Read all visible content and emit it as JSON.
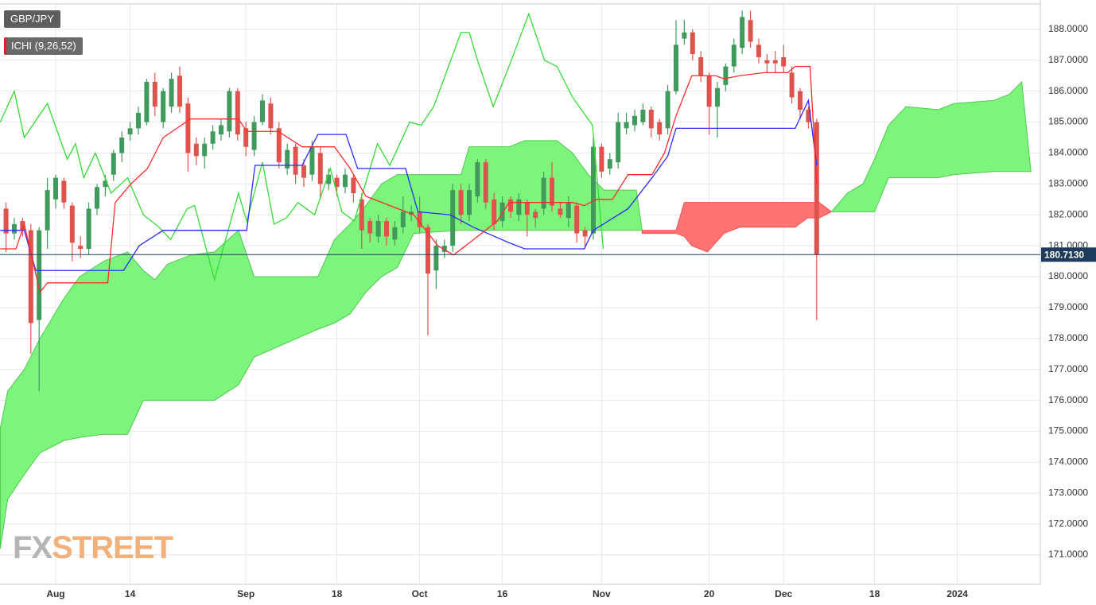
{
  "chart_data": {
    "type": "candlestick",
    "symbol": "GBP/JPY",
    "indicator": "ICHI (9,26,52)",
    "watermark": {
      "prefix": "FX",
      "suffix": "STREET"
    },
    "xlim": [
      -0.73,
      125.04
    ],
    "ylim": [
      170.05,
      188.82
    ],
    "grid": true,
    "xticks": [
      {
        "value": 6,
        "label": "Aug"
      },
      {
        "value": 15,
        "label": "14"
      },
      {
        "value": 29,
        "label": "Sep"
      },
      {
        "value": 40,
        "label": "18"
      },
      {
        "value": 50,
        "label": "Oct"
      },
      {
        "value": 60,
        "label": "16"
      },
      {
        "value": 72,
        "label": "Nov"
      },
      {
        "value": 85,
        "label": "20"
      },
      {
        "value": 94,
        "label": "Dec"
      },
      {
        "value": 105,
        "label": "18"
      },
      {
        "value": 115,
        "label": "2024"
      }
    ],
    "yticks": [
      {
        "value": 171,
        "label": "171.0000"
      },
      {
        "value": 172,
        "label": "172.0000"
      },
      {
        "value": 173,
        "label": "173.0000"
      },
      {
        "value": 174,
        "label": "174.0000"
      },
      {
        "value": 175,
        "label": "175.0000"
      },
      {
        "value": 176,
        "label": "176.0000"
      },
      {
        "value": 177,
        "label": "177.0000"
      },
      {
        "value": 178,
        "label": "178.0000"
      },
      {
        "value": 179,
        "label": "179.0000"
      },
      {
        "value": 180,
        "label": "180.0000"
      },
      {
        "value": 181,
        "label": "181.0000"
      },
      {
        "value": 182,
        "label": "182.0000"
      },
      {
        "value": 183,
        "label": "183.0000"
      },
      {
        "value": 184,
        "label": "184.0000"
      },
      {
        "value": 185,
        "label": "185.0000"
      },
      {
        "value": 186,
        "label": "186.0000"
      },
      {
        "value": 187,
        "label": "187.0000"
      },
      {
        "value": 188,
        "label": "188.0000"
      }
    ],
    "last_price": {
      "value": 180.713,
      "label": "180.7130",
      "color": "#1f3b5c"
    },
    "up_color": "#3f9a5c",
    "down_color": "#e0534d",
    "candles": {
      "x": [
        0,
        1,
        2,
        3,
        4,
        5,
        6,
        7,
        8,
        9,
        10,
        11,
        12,
        13,
        14,
        15,
        16,
        17,
        18,
        19,
        20,
        21,
        22,
        23,
        24,
        25,
        26,
        27,
        28,
        29,
        30,
        31,
        32,
        33,
        34,
        35,
        36,
        37,
        38,
        39,
        40,
        41,
        42,
        43,
        44,
        45,
        46,
        47,
        48,
        49,
        50,
        51,
        52,
        53,
        54,
        55,
        56,
        57,
        58,
        59,
        60,
        61,
        62,
        63,
        64,
        65,
        66,
        67,
        68,
        69,
        70,
        71,
        72,
        73,
        74,
        75,
        76,
        77,
        78,
        79,
        80,
        81,
        82,
        83,
        84,
        85,
        86,
        87,
        88,
        89,
        90,
        91,
        92,
        93,
        94,
        95,
        96,
        97,
        98
      ],
      "open": [
        182.2,
        181.4,
        181.8,
        181.5,
        178.6,
        181.5,
        182.5,
        183.1,
        182.3,
        181.0,
        180.9,
        182.2,
        182.9,
        183.3,
        184.0,
        184.6,
        184.8,
        185.0,
        186.3,
        185.0,
        185.5,
        186.5,
        185.6,
        184.3,
        183.9,
        184.3,
        184.6,
        184.7,
        186.0,
        184.8,
        184.1,
        185.0,
        185.6,
        184.8,
        183.5,
        184.2,
        183.6,
        183.3,
        184.0,
        183.0,
        183.2,
        182.9,
        183.2,
        182.5,
        181.8,
        181.3,
        181.8,
        181.2,
        181.6,
        182.0,
        182.1,
        181.6,
        180.2,
        180.8,
        181.0,
        182.8,
        182.0,
        182.6,
        183.7,
        182.5,
        181.8,
        182.5,
        182.0,
        182.4,
        182.1,
        182.2,
        183.2,
        182.2,
        181.9,
        182.3,
        181.5,
        181.4,
        184.2,
        183.5,
        183.7,
        184.8,
        184.9,
        185.0,
        185.4,
        185.0,
        184.8,
        186.0,
        187.7,
        187.9,
        187.1,
        186.5,
        185.5,
        186.2,
        186.8,
        187.4,
        188.3,
        187.5,
        187.0,
        187.0,
        187.1,
        186.6,
        186.0,
        185.4,
        185.0
      ],
      "high": [
        182.4,
        181.9,
        181.9,
        181.7,
        181.6,
        183.2,
        183.3,
        183.2,
        182.4,
        181.3,
        182.4,
        183.0,
        183.3,
        184.1,
        184.7,
        185.0,
        185.5,
        186.4,
        186.6,
        186.1,
        186.6,
        186.8,
        185.8,
        184.5,
        184.5,
        184.9,
        185.1,
        186.1,
        186.1,
        185.0,
        185.2,
        185.9,
        185.8,
        185.0,
        184.3,
        184.3,
        183.8,
        184.4,
        184.2,
        183.5,
        183.3,
        183.5,
        183.3,
        182.7,
        181.9,
        182.0,
        181.9,
        181.8,
        182.6,
        182.3,
        182.6,
        181.7,
        181.2,
        181.2,
        183.0,
        183.0,
        183.0,
        183.8,
        183.8,
        182.7,
        182.6,
        182.6,
        182.7,
        182.5,
        182.2,
        183.4,
        183.7,
        182.4,
        182.6,
        182.4,
        181.6,
        184.5,
        184.3,
        184.0,
        185.3,
        185.3,
        185.4,
        185.6,
        185.5,
        185.1,
        186.2,
        188.3,
        188.3,
        188.0,
        187.3,
        186.6,
        186.3,
        186.9,
        187.7,
        188.6,
        188.6,
        187.7,
        187.2,
        187.3,
        187.5,
        186.8,
        186.1,
        185.5,
        185.1
      ],
      "low": [
        180.8,
        181.2,
        181.3,
        177.5,
        176.3,
        180.9,
        182.2,
        182.2,
        180.5,
        180.6,
        180.7,
        182.0,
        182.6,
        183.1,
        183.7,
        184.4,
        184.6,
        184.9,
        185.2,
        184.8,
        185.3,
        185.3,
        183.4,
        183.6,
        183.5,
        184.1,
        184.4,
        184.5,
        184.4,
        183.9,
        183.9,
        184.9,
        184.6,
        183.5,
        183.3,
        183.0,
        182.9,
        183.1,
        182.5,
        182.8,
        182.6,
        182.7,
        182.4,
        180.9,
        181.1,
        181.1,
        181.0,
        181.0,
        181.4,
        181.8,
        181.4,
        178.1,
        179.6,
        180.6,
        180.8,
        181.7,
        181.8,
        182.4,
        182.2,
        181.5,
        181.6,
        181.9,
        181.8,
        181.3,
        181.6,
        182.0,
        182.1,
        181.9,
        181.6,
        181.1,
        180.9,
        181.2,
        183.2,
        183.3,
        183.5,
        184.6,
        184.7,
        184.9,
        184.5,
        184.4,
        184.6,
        185.9,
        187.5,
        187.0,
        186.3,
        184.6,
        184.5,
        186.0,
        186.6,
        187.2,
        187.4,
        186.9,
        186.6,
        186.6,
        186.6,
        185.6,
        185.1,
        184.8,
        178.6
      ],
      "close": [
        181.4,
        181.7,
        181.5,
        178.5,
        181.5,
        182.8,
        183.2,
        182.4,
        181.1,
        180.9,
        182.2,
        182.9,
        183.1,
        184.0,
        184.5,
        184.8,
        185.3,
        186.3,
        185.5,
        186.0,
        186.4,
        185.5,
        184.0,
        183.9,
        184.3,
        184.7,
        184.9,
        186.0,
        184.6,
        184.2,
        185.0,
        185.7,
        184.8,
        183.7,
        184.1,
        183.3,
        183.2,
        184.2,
        183.0,
        183.3,
        182.9,
        183.3,
        182.7,
        181.5,
        181.4,
        181.8,
        181.3,
        181.6,
        182.1,
        182.1,
        181.6,
        180.1,
        181.0,
        181.0,
        182.8,
        182.0,
        182.8,
        183.7,
        182.4,
        181.7,
        182.4,
        182.1,
        182.5,
        182.0,
        181.9,
        183.2,
        182.3,
        182.0,
        182.4,
        181.4,
        181.3,
        184.2,
        183.4,
        183.8,
        185.0,
        185.0,
        185.2,
        185.4,
        184.8,
        184.6,
        186.0,
        187.5,
        187.9,
        187.2,
        186.5,
        185.5,
        186.1,
        186.8,
        187.5,
        188.4,
        187.6,
        187.1,
        186.9,
        186.9,
        186.8,
        185.8,
        185.4,
        185.0,
        180.713
      ]
    },
    "clouds": [
      {
        "color": "#7df57d",
        "edge": "#4fc94f",
        "x": [
          -0.7,
          0.2,
          2.2,
          4.1,
          7.0,
          8.9,
          11.8,
          14.7,
          16.6,
          18.0,
          19.5,
          22.3,
          25.2,
          28.1,
          30.0,
          37.7,
          39.7,
          41.6,
          43.5,
          45.4,
          47.3,
          49.3,
          55.0,
          56.0,
          60.8,
          62.7,
          66.6,
          68.5,
          70.4,
          72.3,
          76.2,
          76.9
        ],
        "upper": [
          175.1,
          176.3,
          177.0,
          178.0,
          179.3,
          180.0,
          180.5,
          180.8,
          180.2,
          179.9,
          180.4,
          180.7,
          180.8,
          181.5,
          180.0,
          180.0,
          181.2,
          181.7,
          182.3,
          183.0,
          183.3,
          183.3,
          183.3,
          184.2,
          184.2,
          184.4,
          184.4,
          184.0,
          183.3,
          182.8,
          182.8,
          181.5
        ],
        "lower": [
          171.2,
          172.8,
          173.6,
          174.3,
          174.7,
          174.8,
          174.9,
          174.9,
          176.0,
          176.0,
          176.0,
          176.0,
          176.0,
          176.5,
          177.4,
          178.3,
          178.5,
          178.8,
          179.5,
          180.0,
          180.3,
          181.4,
          181.5,
          181.5,
          181.5,
          181.5,
          181.5,
          181.5,
          181.5,
          181.5,
          181.5,
          181.5
        ]
      },
      {
        "color": "#ff7373",
        "edge": "#f25050",
        "x": [
          76.9,
          81.0,
          82.0,
          82.9,
          84.8,
          86.8,
          88.7,
          91.6,
          95.4,
          96.9,
          98.3,
          99.8
        ],
        "upper": [
          181.5,
          181.5,
          182.4,
          182.4,
          182.4,
          182.4,
          182.4,
          182.4,
          182.4,
          182.4,
          182.4,
          182.1
        ],
        "lower": [
          181.4,
          181.4,
          181.3,
          181.0,
          180.8,
          181.4,
          181.6,
          181.6,
          181.6,
          181.9,
          181.9,
          182.1
        ]
      },
      {
        "color": "#7df57d",
        "edge": "#4fc94f",
        "x": [
          99.8,
          101.7,
          103.6,
          105.0,
          106.7,
          108.8,
          112.7,
          114.6,
          119.4,
          121.3,
          122.8,
          123.9
        ],
        "upper": [
          182.1,
          182.7,
          183.0,
          183.8,
          184.9,
          185.5,
          185.4,
          185.6,
          185.7,
          185.9,
          186.3,
          183.4
        ],
        "lower": [
          182.1,
          182.1,
          182.1,
          182.1,
          183.2,
          183.2,
          183.2,
          183.3,
          183.4,
          183.4,
          183.4,
          183.4
        ]
      }
    ],
    "lines": [
      {
        "color": "#33dd33",
        "x": [
          -0.7,
          1.0,
          2.2,
          5.0,
          7.4,
          8.4,
          9.4,
          10.8,
          12.7,
          14.7,
          16.6,
          18.5,
          19.9,
          21.9,
          22.8,
          25.2,
          28.1,
          29.1,
          31.0,
          32.4,
          33.9,
          35.3,
          37.3,
          39.2,
          40.6,
          42.1,
          44.9,
          46.4,
          48.8,
          50.2,
          51.7,
          55.0,
          56.0,
          57.0,
          58.9,
          60.8,
          63.2,
          65.1,
          66.6,
          68.5,
          70.9,
          72.2
        ],
        "values": [
          185.0,
          186.0,
          184.5,
          185.6,
          183.8,
          184.3,
          183.2,
          184.0,
          182.7,
          183.2,
          182.0,
          181.6,
          181.2,
          182.2,
          182.3,
          179.9,
          182.7,
          181.8,
          183.7,
          181.7,
          181.9,
          182.4,
          182.0,
          183.5,
          182.1,
          181.8,
          184.3,
          183.6,
          185.0,
          184.9,
          185.5,
          187.9,
          187.9,
          187.0,
          185.5,
          186.8,
          188.5,
          187.0,
          186.8,
          185.8,
          184.9,
          180.9
        ]
      },
      {
        "color": "#2a2aff",
        "x": [
          -0.7,
          2.2,
          3.6,
          14.2,
          16.1,
          19.0,
          29.1,
          30.1,
          35.8,
          37.7,
          41.1,
          42.5,
          48.3,
          49.8,
          53.7,
          56.5,
          60.8,
          62.7,
          69.9,
          71.0,
          75.2,
          78.1,
          80.0,
          81.0,
          95.4,
          97.0,
          98
        ],
        "values": [
          181.5,
          181.5,
          180.2,
          180.2,
          181.0,
          181.5,
          181.5,
          183.6,
          183.6,
          184.6,
          184.6,
          183.5,
          183.5,
          182.1,
          182.0,
          181.6,
          181.1,
          180.9,
          180.9,
          181.5,
          182.2,
          183.2,
          183.9,
          184.8,
          184.8,
          185.7,
          183.6
        ]
      },
      {
        "color": "#ff2a2a",
        "x": [
          -0.7,
          1.2,
          2.2,
          4.1,
          5.0,
          12.3,
          13.2,
          15.1,
          17.1,
          19.0,
          22.3,
          28.1,
          29.1,
          32.9,
          35.8,
          39.7,
          41.6,
          43.5,
          49.3,
          52.2,
          54.1,
          57.0,
          59.4,
          60.8,
          68.5,
          69.9,
          71.4,
          73.3,
          75.2,
          78.1,
          79.6,
          81.0,
          82.9,
          85.8,
          86.8,
          88.7,
          91.6,
          94.5,
          95.4,
          97.2,
          98
        ],
        "values": [
          180.9,
          180.9,
          181.7,
          179.5,
          179.8,
          179.8,
          182.4,
          183.0,
          183.5,
          184.5,
          185.1,
          185.1,
          184.7,
          184.7,
          184.2,
          184.2,
          183.5,
          182.6,
          182.0,
          181.0,
          180.7,
          181.3,
          181.8,
          182.4,
          182.4,
          182.3,
          182.5,
          182.5,
          183.3,
          183.3,
          184.0,
          185.2,
          186.5,
          186.5,
          186.4,
          186.5,
          186.6,
          186.6,
          186.8,
          186.8,
          183.0
        ]
      }
    ]
  }
}
